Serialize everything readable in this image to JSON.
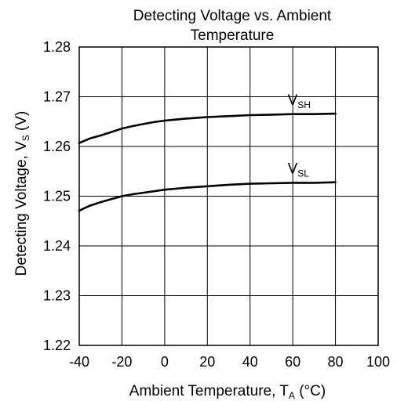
{
  "chart_data": {
    "type": "line",
    "title_lines": [
      "Detecting Voltage vs. Ambient",
      "Temperature"
    ],
    "xlabel": {
      "text": "Ambient Temperature, T",
      "sub": "A",
      "suffix": " (°C)"
    },
    "ylabel": {
      "text": "Detecting Voltage, V",
      "sub": "S",
      "suffix": " (V)"
    },
    "xlim": [
      -40,
      100
    ],
    "ylim": [
      1.22,
      1.28
    ],
    "xticks": [
      -40,
      -20,
      0,
      20,
      40,
      60,
      80,
      100
    ],
    "yticks": [
      1.22,
      1.23,
      1.24,
      1.25,
      1.26,
      1.27,
      1.28
    ],
    "ytick_labels": [
      "1.22",
      "1.23",
      "1.24",
      "1.25",
      "1.26",
      "1.27",
      "1.28"
    ],
    "grid": true,
    "series": [
      {
        "name": "V",
        "sub": "SH",
        "x": [
          -40,
          -35,
          -30,
          -25,
          -20,
          -15,
          -10,
          -5,
          0,
          5,
          10,
          20,
          30,
          40,
          50,
          60,
          70,
          80
        ],
        "y": [
          1.2607,
          1.2616,
          1.2622,
          1.2629,
          1.2636,
          1.2641,
          1.2645,
          1.2649,
          1.2652,
          1.2654,
          1.2656,
          1.2659,
          1.2661,
          1.2663,
          1.2664,
          1.2665,
          1.2665,
          1.2666
        ]
      },
      {
        "name": "V",
        "sub": "SL",
        "x": [
          -40,
          -35,
          -30,
          -25,
          -20,
          -15,
          -10,
          -5,
          0,
          5,
          10,
          20,
          30,
          40,
          50,
          60,
          70,
          80
        ],
        "y": [
          1.2471,
          1.2481,
          1.2488,
          1.2494,
          1.25,
          1.2504,
          1.2507,
          1.251,
          1.2513,
          1.2515,
          1.2517,
          1.252,
          1.2523,
          1.2525,
          1.2526,
          1.2527,
          1.2527,
          1.2528
        ]
      }
    ],
    "line_color": "#000000",
    "grid_color": "#000000"
  }
}
